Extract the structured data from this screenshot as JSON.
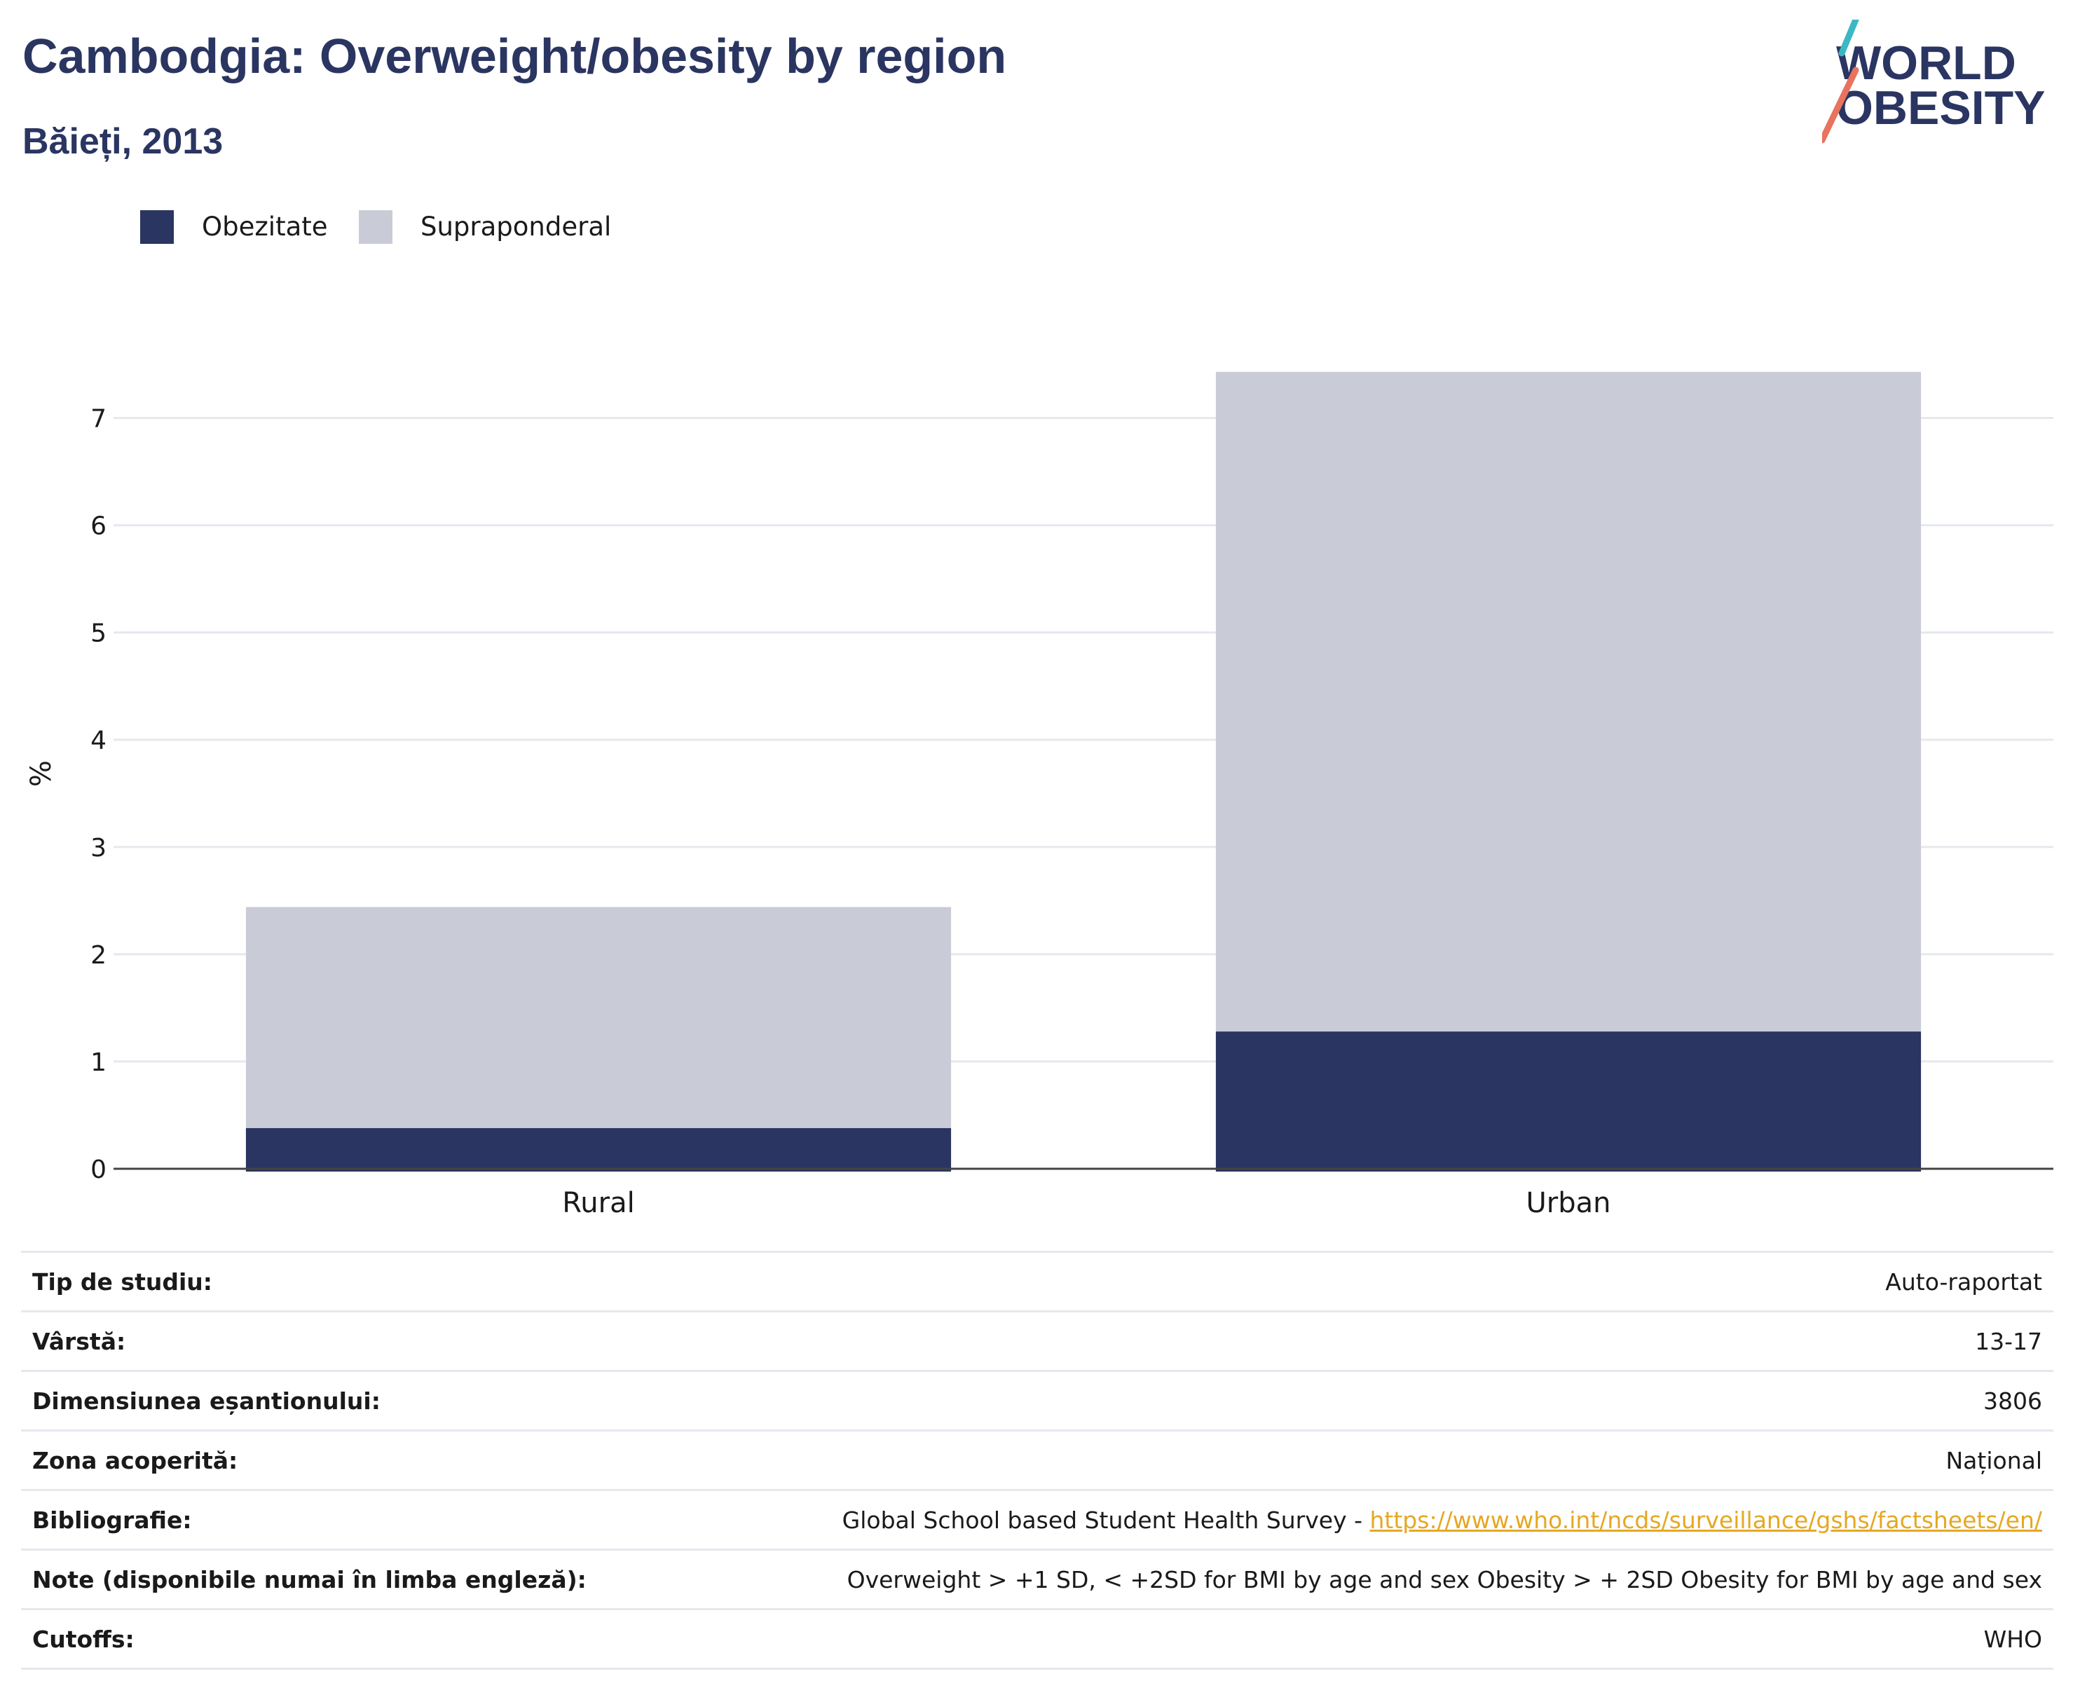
{
  "header": {
    "title": "Cambodgia: Overweight/obesity by region",
    "subtitle": "Băieți, 2013"
  },
  "logo": {
    "line1": "WORLD",
    "line2": "OBESITY",
    "accent_teal": "#3bb8c3",
    "accent_red": "#e8735e"
  },
  "colors": {
    "obesity": "#2a3561",
    "overweight": "#c9ccd7",
    "title": "#2a3561",
    "link": "#e5a823"
  },
  "legend": [
    {
      "label": "Obezitate",
      "color": "#2a3561"
    },
    {
      "label": "Supraponderal",
      "color": "#c9ccd7"
    }
  ],
  "chart_data": {
    "type": "bar",
    "stacked": true,
    "categories": [
      "Rural",
      "Urban"
    ],
    "series": [
      {
        "name": "Obezitate",
        "color": "#2a3561",
        "values": [
          0.38,
          1.28
        ]
      },
      {
        "name": "Supraponderal",
        "color": "#c9ccd7",
        "values": [
          2.06,
          6.15
        ]
      }
    ],
    "ylabel": "%",
    "ylim": [
      0,
      7.5
    ],
    "yticks": [
      0,
      1,
      2,
      3,
      4,
      5,
      6,
      7
    ],
    "grid": true,
    "legend_position": "top-left"
  },
  "info": [
    {
      "label": "Tip de studiu:",
      "value": "Auto-raportat"
    },
    {
      "label": "Vârstă:",
      "value": "13-17"
    },
    {
      "label": "Dimensiunea eșantionului:",
      "value": "3806"
    },
    {
      "label": "Zona acoperită:",
      "value": "Național"
    },
    {
      "label": "Bibliografie:",
      "value": "Global School based Student Health Survey - ",
      "link": "https://www.who.int/ncds/surveillance/gshs/factsheets/en/"
    },
    {
      "label": "Note (disponibile numai în limba engleză):",
      "value": "Overweight > +1 SD, < +2SD for BMI by age and sex Obesity > + 2SD Obesity for BMI by age and sex"
    },
    {
      "label": "Cutoffs:",
      "value": "WHO"
    }
  ]
}
